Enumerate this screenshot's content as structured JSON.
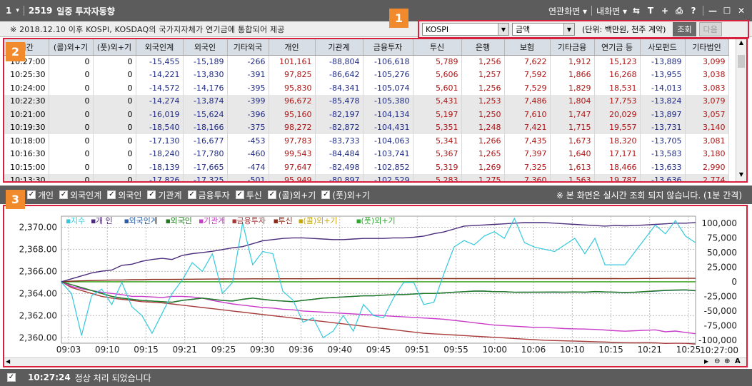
{
  "titlebar": {
    "window_num": "1",
    "screen_code": "2519",
    "screen_title": "일중 투자자동향",
    "related_label": "연관화면",
    "my_screen_label": "내화면"
  },
  "info": {
    "note": "※ 2018.12.10 이후 KOSPI, KOSDAQ의 국가지자체가 연기금에 통합되어 제공"
  },
  "controls": {
    "market_value": "KOSPI",
    "unit_type_value": "금액",
    "unit_text": "(단위: 백만원, 천주 계약)",
    "query_label": "조회",
    "next_label": "다음"
  },
  "badges": [
    "1",
    "2",
    "3"
  ],
  "table": {
    "headers": [
      "시간",
      "(콜)외+기",
      "(풋)외+기",
      "외국인계",
      "외국인",
      "기타외국",
      "개인",
      "기관계",
      "금융투자",
      "투신",
      "은행",
      "보험",
      "기타금융",
      "연기금 등",
      "사모펀드",
      "기타법인"
    ],
    "rows": [
      [
        "10:27:00",
        "0",
        "0",
        "-15,455",
        "-15,189",
        "-266",
        "101,161",
        "-88,804",
        "-106,618",
        "5,789",
        "1,256",
        "7,622",
        "1,912",
        "15,123",
        "-13,889",
        "3,099"
      ],
      [
        "10:25:30",
        "0",
        "0",
        "-14,221",
        "-13,830",
        "-391",
        "97,825",
        "-86,642",
        "-105,276",
        "5,606",
        "1,257",
        "7,592",
        "1,866",
        "16,268",
        "-13,955",
        "3,038"
      ],
      [
        "10:24:00",
        "0",
        "0",
        "-14,572",
        "-14,176",
        "-395",
        "95,830",
        "-84,341",
        "-105,074",
        "5,601",
        "1,256",
        "7,529",
        "1,829",
        "18,531",
        "-14,013",
        "3,083"
      ],
      [
        "10:22:30",
        "0",
        "0",
        "-14,274",
        "-13,874",
        "-399",
        "96,672",
        "-85,478",
        "-105,380",
        "5,431",
        "1,253",
        "7,486",
        "1,804",
        "17,753",
        "-13,824",
        "3,079"
      ],
      [
        "10:21:00",
        "0",
        "0",
        "-16,019",
        "-15,624",
        "-396",
        "95,160",
        "-82,197",
        "-104,134",
        "5,197",
        "1,250",
        "7,610",
        "1,747",
        "20,029",
        "-13,897",
        "3,057"
      ],
      [
        "10:19:30",
        "0",
        "0",
        "-18,540",
        "-18,166",
        "-375",
        "98,272",
        "-82,872",
        "-104,431",
        "5,351",
        "1,248",
        "7,421",
        "1,715",
        "19,557",
        "-13,731",
        "3,140"
      ],
      [
        "10:18:00",
        "0",
        "0",
        "-17,130",
        "-16,677",
        "-453",
        "97,783",
        "-83,733",
        "-104,063",
        "5,341",
        "1,266",
        "7,435",
        "1,673",
        "18,320",
        "-13,705",
        "3,081"
      ],
      [
        "10:16:30",
        "0",
        "0",
        "-18,240",
        "-17,780",
        "-460",
        "99,543",
        "-84,484",
        "-103,741",
        "5,367",
        "1,265",
        "7,397",
        "1,640",
        "17,171",
        "-13,583",
        "3,180"
      ],
      [
        "10:15:00",
        "0",
        "0",
        "-18,139",
        "-17,665",
        "-474",
        "97,647",
        "-82,498",
        "-102,852",
        "5,319",
        "1,269",
        "7,325",
        "1,613",
        "18,466",
        "-13,633",
        "2,990"
      ],
      [
        "10:13:30",
        "0",
        "0",
        "-17,826",
        "-17,325",
        "-501",
        "95,949",
        "-80,897",
        "-102,529",
        "5,283",
        "1,275",
        "7,360",
        "1,563",
        "19,787",
        "-13,636",
        "2,774"
      ]
    ]
  },
  "legend_bar": {
    "items": [
      "개인",
      "외국인계",
      "외국인",
      "기관계",
      "금융투자",
      "투신",
      "(콜)외+기",
      "(풋)외+기"
    ],
    "notice": "※ 본 화면은 실시간 조회 되지 않습니다. (1분 간격)"
  },
  "chart_data": {
    "type": "line",
    "series_labels": [
      "지수",
      "개 인",
      "외국인계",
      "외국인",
      "기관계",
      "금융투자",
      "투신",
      "(콜)외+기",
      "(풋)외+기"
    ],
    "colors": {
      "지수": "#33c9dc",
      "개 인": "#4b2c7c",
      "외국인계": "#2a5ea8",
      "외국인": "#207a20",
      "기관계": "#c93cc9",
      "금융투자": "#a83a3a",
      "투신": "#8b2a1a",
      "(콜)외+기": "#c8a800",
      "(풋)외+기": "#30a830"
    },
    "x_ticks": [
      "09:03",
      "09:10",
      "09:15",
      "09:21",
      "09:25",
      "09:30",
      "09:36",
      "09:40",
      "09:45",
      "09:51",
      "09:55",
      "10:00",
      "10:06",
      "10:10",
      "10:15",
      "10:21",
      "10:25"
    ],
    "x_end_label": "10:27:00",
    "left_axis": {
      "ticks": [
        "2,370.00",
        "2,368.00",
        "2,366.00",
        "2,364.00",
        "2,362.00",
        "2,360.00"
      ],
      "range": [
        2359.5,
        2371.0
      ]
    },
    "right_axis": {
      "ticks": [
        "100,000",
        "75,000",
        "50,000",
        "25,000",
        "0",
        "-25,000",
        "-50,000",
        "-75,000",
        "-100,000"
      ],
      "range": [
        -105000,
        112000
      ]
    },
    "index_series": [
      2365.0,
      2364.0,
      2360.2,
      2363.8,
      2364.4,
      2363.0,
      2365.0,
      2362.8,
      2362.0,
      2360.4,
      2362.2,
      2364.0,
      2365.2,
      2366.8,
      2366.0,
      2367.6,
      2364.0,
      2365.0,
      2370.4,
      2366.6,
      2367.8,
      2367.6,
      2364.2,
      2363.4,
      2361.4,
      2361.8,
      2360.0,
      2360.6,
      2362.0,
      2360.6,
      2363.0,
      2362.0,
      2361.8,
      2363.6,
      2365.0,
      2365.0,
      2363.0,
      2363.2,
      2365.8,
      2368.2,
      2368.8,
      2368.4,
      2369.2,
      2369.6,
      2369.0,
      2370.8,
      2368.6,
      2368.2,
      2368.0,
      2367.8,
      2368.4,
      2369.0,
      2367.6,
      2369.0,
      2366.6,
      2366.6,
      2366.6,
      2367.8,
      2369.0,
      2370.2,
      2369.4,
      2370.6,
      2369.2,
      2368.6
    ],
    "individual": [
      0,
      5000,
      10000,
      15000,
      18000,
      20000,
      28000,
      30000,
      35000,
      38000,
      40000,
      38000,
      45000,
      48000,
      50000,
      52000,
      55000,
      58000,
      60000,
      65000,
      70000,
      72000,
      74000,
      75000,
      75000,
      74000,
      73000,
      72000,
      72000,
      73000,
      74000,
      74000,
      74000,
      75000,
      75000,
      76000,
      78000,
      82000,
      85000,
      90000,
      95000,
      96000,
      97000,
      98000,
      99000,
      100000,
      101000,
      101000,
      101000,
      100000,
      99000,
      98000,
      97000,
      96000,
      95000,
      96000,
      95500,
      96000,
      97000,
      98000,
      99000,
      100000,
      100000,
      101161
    ],
    "foreign_total": [
      0,
      -5000,
      -10000,
      -15000,
      -20000,
      -25000,
      -28000,
      -30000,
      -32000,
      -33000,
      -34000,
      -35000,
      -32000,
      -30000,
      -28000,
      -30000,
      -32000,
      -33000,
      -30000,
      -28000,
      -30000,
      -32000,
      -33000,
      -34000,
      -32000,
      -30000,
      -28000,
      -27000,
      -26000,
      -25000,
      -24000,
      -24000,
      -23000,
      -22000,
      -22000,
      -21000,
      -20000,
      -20000,
      -19000,
      -18000,
      -17000,
      -16000,
      -16000,
      -17000,
      -17000,
      -18000,
      -18000,
      -18000,
      -18000,
      -18000,
      -18000,
      -17500,
      -18000,
      -17000,
      -17500,
      -18000,
      -18500,
      -18000,
      -17000,
      -16000,
      -15000,
      -14500,
      -14000,
      -15455
    ],
    "foreign": [
      0,
      -5000,
      -10000,
      -15000,
      -20000,
      -25000,
      -28000,
      -30000,
      -32000,
      -33000,
      -34000,
      -35000,
      -32000,
      -30000,
      -28000,
      -30000,
      -32000,
      -33000,
      -30000,
      -28000,
      -30000,
      -32000,
      -33000,
      -34000,
      -32000,
      -30000,
      -28000,
      -27000,
      -26000,
      -25000,
      -24000,
      -24000,
      -23000,
      -22000,
      -22000,
      -21000,
      -20000,
      -20000,
      -19000,
      -18000,
      -17000,
      -16000,
      -16000,
      -17000,
      -17000,
      -18000,
      -17800,
      -17700,
      -17600,
      -17500,
      -17700,
      -17300,
      -17800,
      -16700,
      -17300,
      -17700,
      -18200,
      -17800,
      -16700,
      -15600,
      -14500,
      -14200,
      -13800,
      -15189
    ],
    "institution": [
      0,
      -8000,
      -12000,
      -15000,
      -18000,
      -20000,
      -22000,
      -25000,
      -25000,
      -26000,
      -27000,
      -25000,
      -25000,
      -26000,
      -28000,
      -32000,
      -35000,
      -38000,
      -40000,
      -42000,
      -44000,
      -45000,
      -47000,
      -48000,
      -50000,
      -51000,
      -52000,
      -53000,
      -54000,
      -55000,
      -56000,
      -57000,
      -58000,
      -59000,
      -60000,
      -61000,
      -62000,
      -63000,
      -64000,
      -66000,
      -68000,
      -70000,
      -72000,
      -74000,
      -75000,
      -76000,
      -77000,
      -78000,
      -78000,
      -79000,
      -80000,
      -80500,
      -80900,
      -81500,
      -82500,
      -83700,
      -84500,
      -83700,
      -82900,
      -82200,
      -85500,
      -84300,
      -86600,
      -88804
    ],
    "fin_invest": [
      0,
      -10000,
      -15000,
      -20000,
      -25000,
      -28000,
      -30000,
      -32000,
      -34000,
      -35000,
      -36000,
      -38000,
      -40000,
      -42000,
      -44000,
      -46000,
      -48000,
      -50000,
      -52000,
      -54000,
      -56000,
      -58000,
      -60000,
      -62000,
      -64000,
      -66000,
      -68000,
      -70000,
      -72000,
      -74000,
      -76000,
      -78000,
      -80000,
      -82000,
      -84000,
      -86000,
      -88000,
      -89000,
      -90000,
      -91000,
      -92000,
      -93000,
      -94000,
      -95000,
      -96000,
      -97000,
      -98000,
      -99000,
      -100000,
      -100500,
      -101000,
      -101500,
      -102000,
      -102500,
      -102900,
      -103700,
      -104100,
      -104400,
      -104100,
      -104400,
      -105400,
      -105100,
      -105300,
      -106618
    ],
    "trust": [
      0,
      1000,
      1500,
      2000,
      2500,
      3000,
      3000,
      3500,
      3500,
      4000,
      4000,
      4000,
      4200,
      4400,
      4500,
      4600,
      4700,
      4800,
      4900,
      5000,
      5000,
      5000,
      5100,
      5100,
      5100,
      5100,
      5200,
      5200,
      5200,
      5200,
      5200,
      5200,
      5200,
      5200,
      5200,
      5300,
      5300,
      5300,
      5300,
      5300,
      5300,
      5300,
      5300,
      5300,
      5300,
      5300,
      5300,
      5300,
      5300,
      5300,
      5300,
      5283,
      5319,
      5367,
      5341,
      5351,
      5197,
      5431,
      5601,
      5606,
      5789,
      5789,
      5789,
      5789
    ],
    "call": [
      0,
      0,
      0,
      0,
      0,
      0,
      0,
      0,
      0,
      0,
      0,
      0,
      0,
      0,
      0,
      0,
      0,
      0,
      0,
      0,
      0,
      0,
      0,
      0,
      0,
      0,
      0,
      0,
      0,
      0,
      0,
      0,
      0,
      0,
      0,
      0,
      0,
      0,
      0,
      0,
      0,
      0,
      0,
      0,
      0,
      0,
      0,
      0,
      0,
      0,
      0,
      0,
      0,
      0,
      0,
      0,
      0,
      0,
      0,
      0,
      0,
      0,
      0,
      0
    ],
    "put": [
      0,
      0,
      0,
      0,
      0,
      0,
      0,
      0,
      0,
      0,
      0,
      0,
      0,
      0,
      0,
      0,
      0,
      0,
      0,
      0,
      0,
      0,
      0,
      0,
      0,
      0,
      0,
      0,
      0,
      0,
      0,
      0,
      0,
      0,
      0,
      0,
      0,
      0,
      0,
      0,
      0,
      0,
      0,
      0,
      0,
      0,
      0,
      0,
      0,
      0,
      0,
      0,
      0,
      0,
      0,
      0,
      0,
      0,
      0,
      0,
      0,
      0,
      0,
      0
    ]
  },
  "status": {
    "time": "10:27:24",
    "message": "정상 처리 되었습니다"
  }
}
